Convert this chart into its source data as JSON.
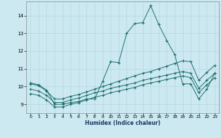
{
  "xlabel": "Humidex (Indice chaleur)",
  "bg_color": "#cce8f0",
  "line_color": "#1a6e6a",
  "grid_color": "#b0d4d8",
  "xlim": [
    -0.5,
    23.5
  ],
  "ylim": [
    8.5,
    14.8
  ],
  "yticks": [
    9,
    10,
    11,
    12,
    13,
    14
  ],
  "xticks": [
    0,
    1,
    2,
    3,
    4,
    5,
    6,
    7,
    8,
    9,
    10,
    11,
    12,
    13,
    14,
    15,
    16,
    17,
    18,
    19,
    20,
    21,
    22,
    23
  ],
  "series": [
    {
      "x": [
        0,
        1,
        2,
        3,
        4,
        5,
        6,
        7,
        8,
        9,
        10,
        11,
        12,
        13,
        14,
        15,
        16,
        17,
        18,
        19,
        20,
        21,
        22,
        23
      ],
      "y": [
        10.2,
        10.1,
        9.8,
        9.0,
        9.0,
        9.1,
        9.15,
        9.3,
        9.3,
        10.3,
        11.4,
        11.35,
        13.0,
        13.55,
        13.6,
        14.55,
        13.5,
        12.6,
        11.8,
        10.15,
        10.15,
        9.3,
        9.85,
        10.75
      ]
    },
    {
      "x": [
        0,
        1,
        2,
        3,
        4,
        5,
        6,
        7,
        8,
        9,
        10,
        11,
        12,
        13,
        14,
        15,
        16,
        17,
        18,
        19,
        20,
        21,
        22,
        23
      ],
      "y": [
        10.15,
        10.05,
        9.75,
        9.3,
        9.3,
        9.45,
        9.55,
        9.7,
        9.85,
        10.0,
        10.15,
        10.3,
        10.45,
        10.6,
        10.75,
        10.85,
        11.0,
        11.15,
        11.3,
        11.45,
        11.4,
        10.35,
        10.8,
        11.2
      ]
    },
    {
      "x": [
        0,
        1,
        2,
        3,
        4,
        5,
        6,
        7,
        8,
        9,
        10,
        11,
        12,
        13,
        14,
        15,
        16,
        17,
        18,
        19,
        20,
        21,
        22,
        23
      ],
      "y": [
        9.85,
        9.75,
        9.5,
        9.1,
        9.1,
        9.25,
        9.35,
        9.5,
        9.65,
        9.75,
        9.9,
        10.0,
        10.1,
        10.2,
        10.35,
        10.45,
        10.55,
        10.65,
        10.75,
        10.85,
        10.75,
        9.9,
        10.35,
        10.75
      ]
    },
    {
      "x": [
        0,
        1,
        2,
        3,
        4,
        5,
        6,
        7,
        8,
        9,
        10,
        11,
        12,
        13,
        14,
        15,
        16,
        17,
        18,
        19,
        20,
        21,
        22,
        23
      ],
      "y": [
        9.6,
        9.5,
        9.25,
        8.85,
        8.85,
        9.0,
        9.1,
        9.25,
        9.4,
        9.5,
        9.65,
        9.75,
        9.85,
        9.95,
        10.1,
        10.2,
        10.3,
        10.4,
        10.5,
        10.6,
        10.5,
        9.65,
        10.1,
        10.5
      ]
    }
  ]
}
